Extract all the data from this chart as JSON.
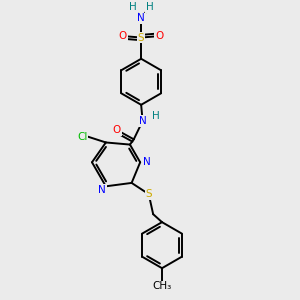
{
  "bg_color": "#ebebeb",
  "atom_colors": {
    "N": "#0000ff",
    "O": "#ff0000",
    "S": "#ccaa00",
    "Cl": "#00bb00",
    "C": "#000000",
    "H": "#008080"
  },
  "bond_color": "#000000",
  "bond_width": 1.4
}
